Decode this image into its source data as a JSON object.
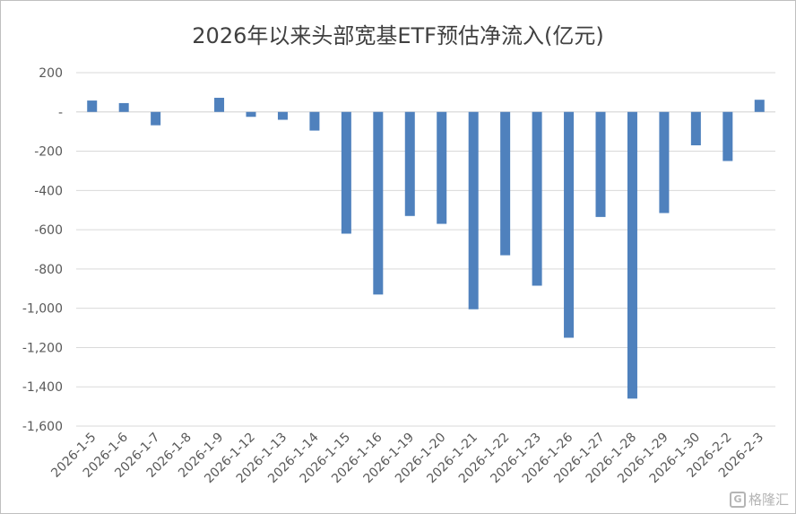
{
  "chart_data": {
    "type": "bar",
    "title": "2026年以来头部宽基ETF预估净流入(亿元)",
    "xlabel": "",
    "ylabel": "",
    "ylim": [
      -1600,
      200
    ],
    "yticks": [
      200,
      0,
      -200,
      -400,
      -600,
      -800,
      -1000,
      -1200,
      -1400,
      -1600
    ],
    "ytick_labels": [
      "200",
      "-",
      "-200",
      "-400",
      "-600",
      "-800",
      "-1,000",
      "-1,200",
      "-1,400",
      "-1,600"
    ],
    "grid": true,
    "legend": "none",
    "bar_color": "#4f81bd",
    "categories": [
      "2026-1-5",
      "2026-1-6",
      "2026-1-7",
      "2026-1-8",
      "2026-1-9",
      "2026-1-12",
      "2026-1-13",
      "2026-1-14",
      "2026-1-15",
      "2026-1-16",
      "2026-1-19",
      "2026-1-20",
      "2026-1-21",
      "2026-1-22",
      "2026-1-23",
      "2026-1-26",
      "2026-1-27",
      "2026-1-28",
      "2026-1-29",
      "2026-1-30",
      "2026-2-2",
      "2026-2-3"
    ],
    "values": [
      58,
      45,
      -68,
      0,
      72,
      -25,
      -40,
      -95,
      -620,
      -930,
      -530,
      -570,
      -1005,
      -730,
      -885,
      -1150,
      -535,
      -1460,
      -515,
      -170,
      -250,
      62
    ]
  },
  "watermark": {
    "logo": "G",
    "text": "格隆汇"
  }
}
